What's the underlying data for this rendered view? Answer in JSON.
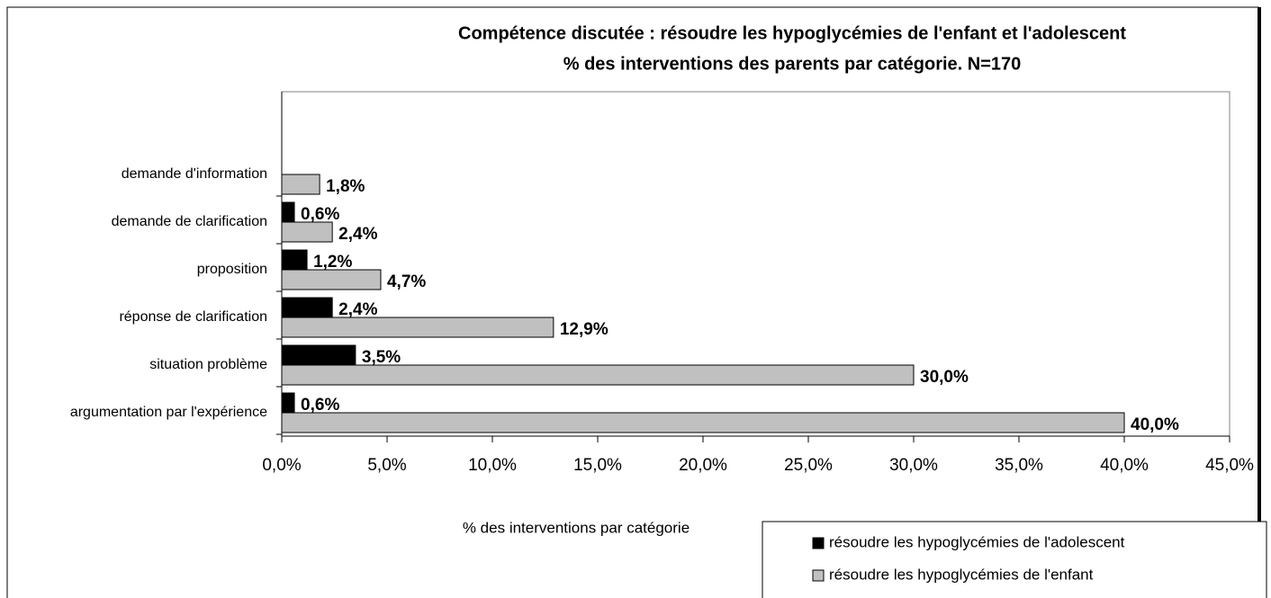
{
  "chart_data": {
    "type": "bar",
    "orientation": "horizontal",
    "title": "Compétence discutée : résoudre les hypoglycémies de l'enfant et l'adolescent",
    "subtitle": "% des interventions des parents par catégorie. N=170",
    "x_label": "% des interventions par catégorie",
    "categories": [
      "demande d'information",
      "demande de clarification",
      "proposition",
      "réponse de clarification",
      "situation problème",
      "argumentation par l'expérience"
    ],
    "series": [
      {
        "name": "résoudre les hypoglycémies de l'adolescent",
        "color": "#000000",
        "values": [
          null,
          0.6,
          1.2,
          2.4,
          3.5,
          0.6
        ],
        "value_labels": [
          null,
          "0,6%",
          "1,2%",
          "2,4%",
          "3,5%",
          "0,6%"
        ]
      },
      {
        "name": "résoudre les hypoglycémies de l'enfant",
        "color": "#c0c0c0",
        "values": [
          1.8,
          2.4,
          4.7,
          12.9,
          30.0,
          40.0
        ],
        "value_labels": [
          "1,8%",
          "2,4%",
          "4,7%",
          "12,9%",
          "30,0%",
          "40,0%"
        ]
      }
    ],
    "xlim": [
      0,
      45
    ],
    "xticks": [
      {
        "value": 0,
        "label": "0,0%"
      },
      {
        "value": 5,
        "label": "5,0%"
      },
      {
        "value": 10,
        "label": "10,0%"
      },
      {
        "value": 15,
        "label": "15,0%"
      },
      {
        "value": 20,
        "label": "20,0%"
      },
      {
        "value": 25,
        "label": "25,0%"
      },
      {
        "value": 30,
        "label": "30,0%"
      },
      {
        "value": 35,
        "label": "35,0%"
      },
      {
        "value": 40,
        "label": "40,0%"
      },
      {
        "value": 45,
        "label": "45,0%"
      }
    ],
    "grid": false,
    "legend": "bottom-right"
  }
}
